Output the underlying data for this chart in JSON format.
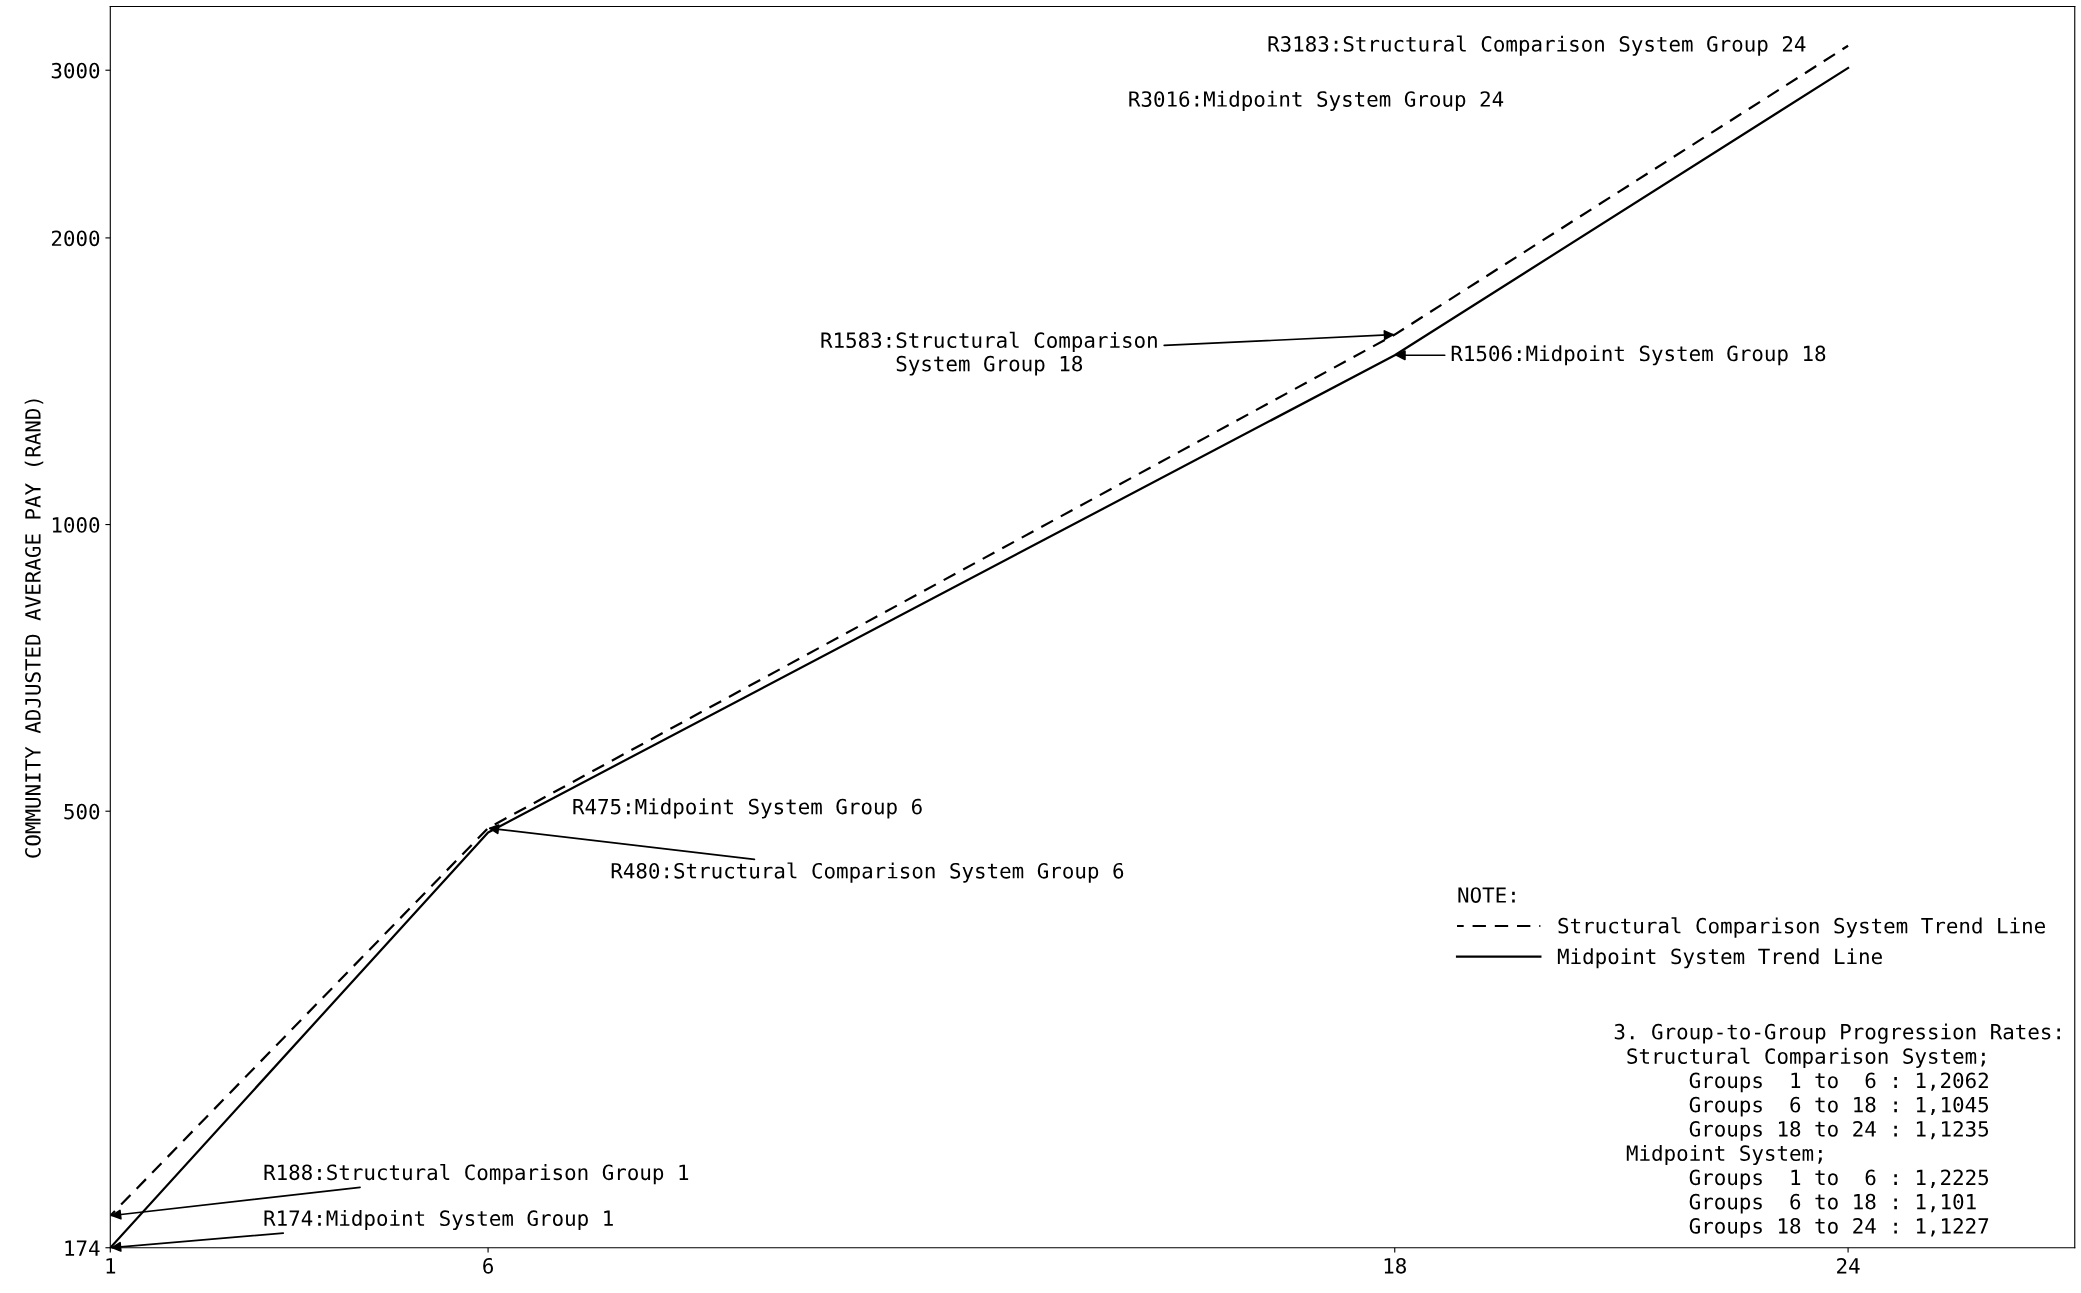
{
  "chart_data": {
    "type": "line",
    "ylabel": "COMMUNITY ADJUSTED AVERAGE PAY (RAND)",
    "x": [
      1,
      6,
      18,
      24
    ],
    "series": [
      {
        "name": "Structural Comparison System Trend Line",
        "color": "#000000",
        "line_style": "dashed",
        "values": [
          188,
          480,
          1583,
          3183
        ]
      },
      {
        "name": "Midpoint System Trend Line",
        "color": "#000000",
        "line_style": "solid",
        "values": [
          174,
          475,
          1506,
          3016
        ]
      }
    ],
    "log": "y",
    "xlim": [
      1,
      27
    ],
    "xticks": [
      1,
      6,
      18,
      24
    ],
    "ylim": [
      174,
      3500
    ],
    "yticks": [
      174,
      500,
      1000,
      2000,
      3000
    ],
    "grid": false,
    "legend": "bottom right",
    "legend_title": "NOTE:",
    "annotations": [
      {
        "text": "R3183:Structural Comparison System Group 24",
        "x": 24,
        "y": 3183
      },
      "R3016:Midpoint System Group 24",
      {
        "text": "R1583:Structural Comparison\nSystem Group 18",
        "x": 18,
        "y": 1583
      },
      {
        "text": "R1506:Midpoint System Group 18",
        "x": 18,
        "y": 1506
      },
      "R475:Midpoint System Group 6",
      {
        "text": "R480:Structural Comparison System Group 6",
        "x": 6,
        "y": 480
      },
      {
        "text": "R188:Structural Comparison Group 1",
        "x": 1,
        "y": 188
      },
      {
        "text": "R174:Midpoint System Group 1",
        "x": 1,
        "y": 174
      },
      "3. Group-to-Group Progression Rates:\n Structural Comparison System;\n      Groups  1 to  6 : 1,2062\n      Groups  6 to 18 : 1,1045\n      Groups 18 to 24 : 1,1235\n Midpoint System;\n      Groups  1 to  6 : 1,2225\n      Groups  6 to 18 : 1,101\n      Groups 18 to 24 : 1,1227"
    ]
  }
}
